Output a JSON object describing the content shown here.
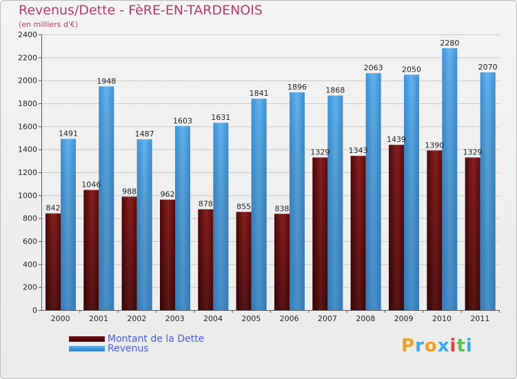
{
  "chart_data": {
    "type": "bar",
    "title": "Revenus/Dette - FèRE-EN-TARDENOIS",
    "subtitle": "(en milliers d'€)",
    "categories": [
      "2000",
      "2001",
      "2002",
      "2003",
      "2004",
      "2005",
      "2006",
      "2007",
      "2008",
      "2009",
      "2010",
      "2011"
    ],
    "series": [
      {
        "name": "Montant de la Dette",
        "values": [
          842,
          1046,
          988,
          962,
          878,
          855,
          838,
          1329,
          1343,
          1439,
          1390,
          1329
        ]
      },
      {
        "name": "Revenus",
        "values": [
          1491,
          1948,
          1487,
          1603,
          1631,
          1841,
          1896,
          1868,
          2063,
          2050,
          2280,
          2070
        ]
      }
    ],
    "yticks": [
      0,
      200,
      400,
      600,
      800,
      1000,
      1200,
      1400,
      1600,
      1800,
      2000,
      2200,
      2400
    ],
    "ylim": [
      0,
      2400
    ],
    "grid": true,
    "legend_position": "bottom-left",
    "colors": {
      "dette": "#6b0f0f",
      "revenus": "#3d98e0",
      "title": "#b33a68",
      "legend_text": "#4a5bd8"
    }
  },
  "logo": {
    "letters": [
      "P",
      "r",
      "o",
      "x",
      "i",
      "t",
      "i"
    ],
    "colors": [
      "#f0a020",
      "#3aa8e8",
      "#f0a020",
      "#3aa8e8",
      "#e83a3a",
      "#5ac04a",
      "#3aa8e8"
    ]
  }
}
